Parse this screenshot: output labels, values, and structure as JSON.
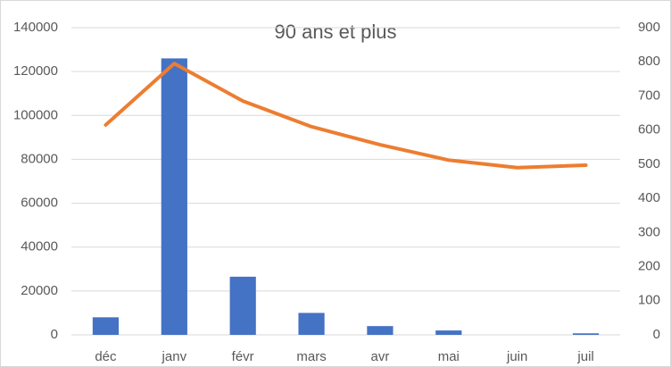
{
  "chart_data": {
    "type": "bar",
    "title": "90 ans et plus",
    "categories": [
      "déc",
      "janv",
      "févr",
      "mars",
      "avr",
      "mai",
      "juin",
      "juil"
    ],
    "series": [
      {
        "type": "bar",
        "color": "#4472c4",
        "values": [
          8000,
          126000,
          26500,
          10000,
          4000,
          2000,
          0,
          700
        ]
      },
      {
        "type": "line",
        "axis": "y2",
        "color": "#ed7d31",
        "values": [
          615,
          795,
          685,
          610,
          557,
          512,
          490,
          497
        ]
      }
    ],
    "ylim": [
      0,
      140000
    ],
    "yticks": [
      0,
      20000,
      40000,
      60000,
      80000,
      100000,
      120000,
      140000
    ],
    "y2lim": [
      0,
      900
    ],
    "y2ticks": [
      0,
      100,
      200,
      300,
      400,
      500,
      600,
      700,
      800,
      900
    ],
    "grid": true
  }
}
